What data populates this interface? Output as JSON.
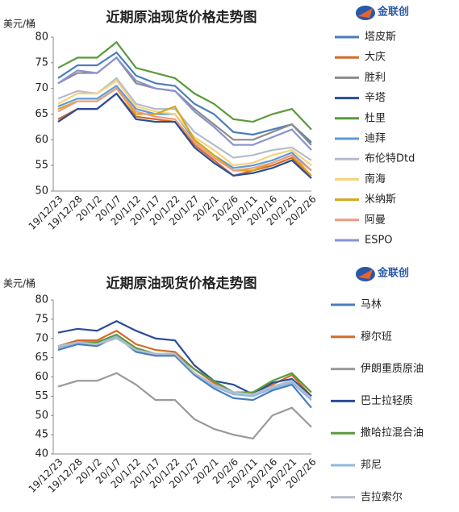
{
  "chart_data": [
    {
      "type": "line",
      "title": "近期原油现货价格走势图",
      "y_label": "美元/桶",
      "logo_text": "金联创",
      "categories": [
        "19/12/23",
        "19/12/28",
        "20/1/2",
        "20/1/7",
        "20/1/12",
        "20/1/17",
        "20/1/22",
        "20/1/27",
        "20/2/1",
        "20/2/6",
        "20/2/11",
        "20/2/16",
        "20/2/21",
        "20/2/26"
      ],
      "ylim": [
        50,
        80
      ],
      "yticks": [
        50,
        55,
        60,
        65,
        70,
        75,
        80
      ],
      "legend": "right",
      "series": [
        {
          "name": "塔皮斯",
          "color": "#4a7ebb",
          "values": [
            72,
            74.5,
            74.5,
            77,
            72.5,
            71,
            70.5,
            67,
            65,
            61.5,
            61,
            62,
            63,
            59.5
          ]
        },
        {
          "name": "大庆",
          "color": "#d26b2a",
          "values": [
            64,
            66,
            66,
            69,
            64.5,
            64,
            63.5,
            59,
            56,
            53,
            54,
            55,
            56.5,
            52.5
          ]
        },
        {
          "name": "胜利",
          "color": "#8c8c8c",
          "values": [
            71,
            73,
            73,
            76,
            71,
            70,
            69.5,
            66,
            63,
            60,
            60,
            61.5,
            63,
            59
          ]
        },
        {
          "name": "辛塔",
          "color": "#2a4e96",
          "values": [
            63.5,
            66,
            66,
            69,
            64,
            63.5,
            63.5,
            58.5,
            55.5,
            53,
            53.5,
            54.5,
            56,
            52.5
          ]
        },
        {
          "name": "杜里",
          "color": "#5a9a3c",
          "values": [
            74,
            76,
            76,
            79,
            74,
            73,
            72,
            69,
            67,
            64,
            63.5,
            65,
            66,
            62
          ]
        },
        {
          "name": "迪拜",
          "color": "#5b9bd5",
          "values": [
            66.5,
            68,
            68,
            70.5,
            66,
            65,
            65,
            60,
            57,
            54.5,
            55,
            56,
            57.5,
            54
          ]
        },
        {
          "name": "布伦特Dtd",
          "color": "#b4bccc",
          "values": [
            68,
            69.5,
            69,
            72,
            67,
            66,
            66,
            61.5,
            59,
            56.5,
            57,
            58,
            58.5,
            56
          ]
        },
        {
          "name": "南海",
          "color": "#f7d27a",
          "values": [
            67,
            69,
            69,
            71.5,
            66.5,
            65.5,
            65,
            60.5,
            58,
            55,
            55.5,
            57,
            58,
            55
          ]
        },
        {
          "name": "米纳斯",
          "color": "#d6a718",
          "values": [
            66,
            67.5,
            67.5,
            70,
            65,
            65,
            66.5,
            60,
            57,
            54,
            54,
            55.5,
            57,
            53
          ]
        },
        {
          "name": "阿曼",
          "color": "#ec9b80",
          "values": [
            65.5,
            67.5,
            67.5,
            70,
            65.5,
            64.5,
            64,
            59.5,
            56.5,
            54,
            54.5,
            55.5,
            57,
            54
          ]
        },
        {
          "name": "ESPO",
          "color": "#8a93d0",
          "values": [
            71,
            73.5,
            73,
            76,
            71.5,
            70,
            69.5,
            65.5,
            62.5,
            59,
            59,
            60.5,
            62,
            58
          ]
        }
      ]
    },
    {
      "type": "line",
      "title": "近期原油现货价格走势图",
      "y_label": "美元/桶",
      "logo_text": "金联创",
      "categories": [
        "19/12/23",
        "19/12/28",
        "20/1/2",
        "20/1/7",
        "20/1/12",
        "20/1/17",
        "20/1/22",
        "20/1/27",
        "20/2/1",
        "20/2/6",
        "20/2/11",
        "20/2/16",
        "20/2/21",
        "20/2/26"
      ],
      "ylim": [
        40,
        80
      ],
      "yticks": [
        40,
        45,
        50,
        55,
        60,
        65,
        70,
        75,
        80
      ],
      "legend": "right",
      "series": [
        {
          "name": "马林",
          "color": "#4a7ebb",
          "values": [
            67,
            68.5,
            68,
            70.5,
            66.5,
            65.5,
            65.5,
            60.5,
            57,
            54.5,
            54,
            56.5,
            58,
            52
          ]
        },
        {
          "name": "穆尔班",
          "color": "#d26b2a",
          "values": [
            68,
            69.5,
            69.5,
            72,
            68.5,
            67,
            66.5,
            62,
            58.5,
            56,
            56,
            58,
            60.5,
            55
          ]
        },
        {
          "name": "伊朗重质原油",
          "color": "#9a9a9a",
          "values": [
            57.5,
            59,
            59,
            61,
            58,
            54,
            54,
            49,
            46.5,
            45,
            44,
            50,
            52,
            47
          ]
        },
        {
          "name": "巴士拉轻质",
          "color": "#2a4e96",
          "values": [
            71.5,
            72.5,
            72,
            74.5,
            72,
            70,
            69.5,
            63,
            59,
            58,
            55.5,
            58.5,
            59.5,
            55
          ]
        },
        {
          "name": "撒哈拉混合油",
          "color": "#5a9a3c",
          "values": [
            68,
            69,
            69,
            71,
            67.5,
            66,
            66,
            62,
            59,
            56,
            56,
            59,
            61,
            56
          ]
        },
        {
          "name": "邦尼",
          "color": "#8fb8e0",
          "values": [
            67.5,
            69,
            68.5,
            70.5,
            67,
            66,
            66,
            61,
            57.5,
            55.5,
            55,
            57,
            58.5,
            54
          ]
        },
        {
          "name": "吉拉索尔",
          "color": "#b4bccc",
          "values": [
            68,
            69,
            68.5,
            70,
            67,
            66,
            66,
            61,
            58,
            56,
            55.5,
            57.5,
            59,
            54.5
          ]
        }
      ]
    }
  ]
}
